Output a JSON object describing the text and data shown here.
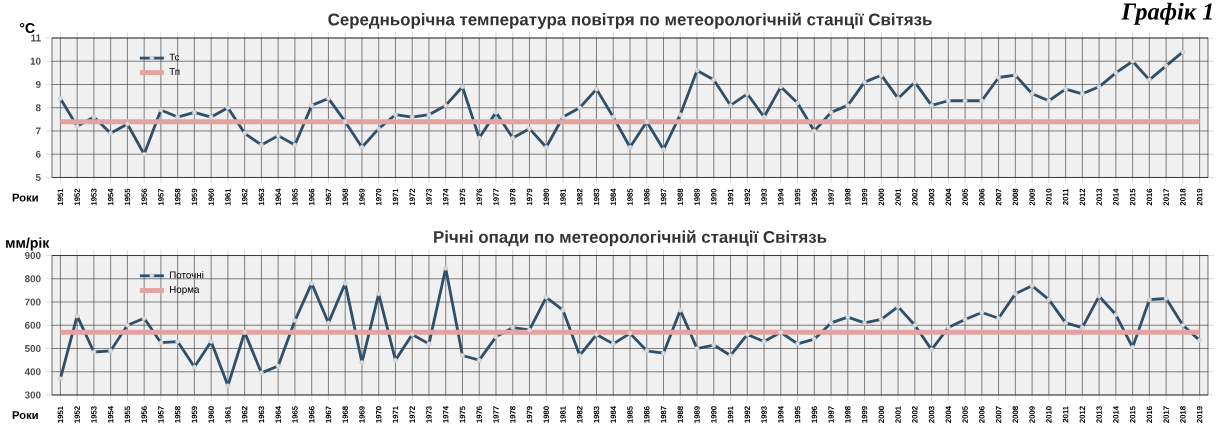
{
  "chart_data": [
    {
      "type": "line",
      "title": "Середньорічна температура повітря по метеорологічній станції Світязь",
      "ylabel": "°C",
      "xlabel": "Роки",
      "categories": [
        "1951",
        "1952",
        "1953",
        "1954",
        "1955",
        "1956",
        "1957",
        "1958",
        "1959",
        "1960",
        "1961",
        "1962",
        "1963",
        "1964",
        "1965",
        "1966",
        "1967",
        "1968",
        "1969",
        "1970",
        "1971",
        "1972",
        "1973",
        "1974",
        "1975",
        "1976",
        "1977",
        "1978",
        "1979",
        "1980",
        "1981",
        "1982",
        "1983",
        "1984",
        "1985",
        "1986",
        "1987",
        "1988",
        "1989",
        "1990",
        "1991",
        "1992",
        "1993",
        "1994",
        "1995",
        "1996",
        "1997",
        "1998",
        "1999",
        "2000",
        "2001",
        "2002",
        "2003",
        "2004",
        "2005",
        "2006",
        "2007",
        "2008",
        "2009",
        "2010",
        "2011",
        "2012",
        "2013",
        "2014",
        "2015",
        "2016",
        "2017",
        "2018",
        "2019"
      ],
      "series": [
        {
          "name": "Тс",
          "color": "#2f4f6a",
          "marker": "circle",
          "values": [
            8.4,
            7.2,
            7.6,
            6.9,
            7.3,
            6.0,
            7.9,
            7.6,
            7.8,
            7.6,
            8.0,
            6.9,
            6.4,
            6.8,
            6.4,
            8.1,
            8.4,
            7.4,
            6.3,
            7.1,
            7.7,
            7.6,
            7.7,
            8.1,
            8.9,
            6.7,
            7.8,
            6.7,
            7.1,
            6.3,
            7.6,
            8.0,
            8.8,
            7.6,
            6.3,
            7.4,
            6.2,
            7.7,
            9.6,
            9.2,
            8.1,
            8.6,
            7.6,
            8.9,
            8.2,
            7.0,
            7.8,
            8.1,
            9.1,
            9.4,
            8.4,
            9.1,
            8.1,
            8.3,
            8.3,
            8.3,
            9.3,
            9.4,
            8.6,
            8.3,
            8.8,
            8.6,
            8.9,
            9.5,
            10.0,
            9.2,
            9.8,
            10.4,
            null
          ]
        },
        {
          "name": "Тп",
          "color": "#e3a3a3",
          "marker": "none",
          "values": [
            7.4,
            7.4,
            7.4,
            7.4,
            7.4,
            7.4,
            7.4,
            7.4,
            7.4,
            7.4,
            7.4,
            7.4,
            7.4,
            7.4,
            7.4,
            7.4,
            7.4,
            7.4,
            7.4,
            7.4,
            7.4,
            7.4,
            7.4,
            7.4,
            7.4,
            7.4,
            7.4,
            7.4,
            7.4,
            7.4,
            7.4,
            7.4,
            7.4,
            7.4,
            7.4,
            7.4,
            7.4,
            7.4,
            7.4,
            7.4,
            7.4,
            7.4,
            7.4,
            7.4,
            7.4,
            7.4,
            7.4,
            7.4,
            7.4,
            7.4,
            7.4,
            7.4,
            7.4,
            7.4,
            7.4,
            7.4,
            7.4,
            7.4,
            7.4,
            7.4,
            7.4,
            7.4,
            7.4,
            7.4,
            7.4,
            7.4,
            7.4,
            7.4,
            7.4
          ]
        }
      ],
      "ylim": [
        5,
        11
      ],
      "yticks": [
        5,
        6,
        7,
        8,
        9,
        10,
        11
      ],
      "grid": true,
      "legend": "top left",
      "annotations": [
        "Графік 1"
      ]
    },
    {
      "type": "line",
      "title": "Річні опади по метеорологічній станції Світязь",
      "ylabel": "мм/рік",
      "xlabel": "Роки",
      "categories": [
        "1951",
        "1952",
        "1953",
        "1954",
        "1955",
        "1956",
        "1957",
        "1958",
        "1959",
        "1960",
        "1961",
        "1962",
        "1963",
        "1964",
        "1965",
        "1966",
        "1967",
        "1968",
        "1969",
        "1970",
        "1971",
        "1972",
        "1973",
        "1974",
        "1975",
        "1976",
        "1977",
        "1978",
        "1979",
        "1980",
        "1981",
        "1982",
        "1983",
        "1984",
        "1985",
        "1986",
        "1987",
        "1988",
        "1989",
        "1990",
        "1991",
        "1992",
        "1993",
        "1994",
        "1995",
        "1996",
        "1997",
        "1998",
        "1999",
        "2000",
        "2001",
        "2002",
        "2003",
        "2004",
        "2005",
        "2006",
        "2007",
        "2008",
        "2009",
        "2010",
        "2011",
        "2012",
        "2013",
        "2014",
        "2015",
        "2016",
        "2017",
        "2018",
        "2019"
      ],
      "series": [
        {
          "name": "Поточні",
          "color": "#2f4f6a",
          "marker": "circle",
          "values": [
            370,
            640,
            485,
            490,
            600,
            630,
            525,
            530,
            420,
            530,
            340,
            570,
            395,
            425,
            620,
            780,
            610,
            780,
            440,
            735,
            450,
            560,
            520,
            845,
            470,
            450,
            550,
            590,
            580,
            720,
            665,
            470,
            560,
            520,
            565,
            490,
            480,
            665,
            500,
            515,
            470,
            560,
            530,
            570,
            520,
            540,
            610,
            635,
            610,
            625,
            680,
            600,
            495,
            590,
            625,
            655,
            630,
            735,
            770,
            710,
            610,
            590,
            725,
            645,
            505,
            710,
            715,
            600,
            535
          ]
        },
        {
          "name": "Норма",
          "color": "#e3a3a3",
          "marker": "none",
          "values": [
            570,
            570,
            570,
            570,
            570,
            570,
            570,
            570,
            570,
            570,
            570,
            570,
            570,
            570,
            570,
            570,
            570,
            570,
            570,
            570,
            570,
            570,
            570,
            570,
            570,
            570,
            570,
            570,
            570,
            570,
            570,
            570,
            570,
            570,
            570,
            570,
            570,
            570,
            570,
            570,
            570,
            570,
            570,
            570,
            570,
            570,
            570,
            570,
            570,
            570,
            570,
            570,
            570,
            570,
            570,
            570,
            570,
            570,
            570,
            570,
            570,
            570,
            570,
            570,
            570,
            570,
            570,
            570,
            570
          ]
        }
      ],
      "ylim": [
        300,
        900
      ],
      "yticks": [
        300,
        400,
        500,
        600,
        700,
        800,
        900
      ],
      "grid": true,
      "legend": "top left"
    }
  ]
}
